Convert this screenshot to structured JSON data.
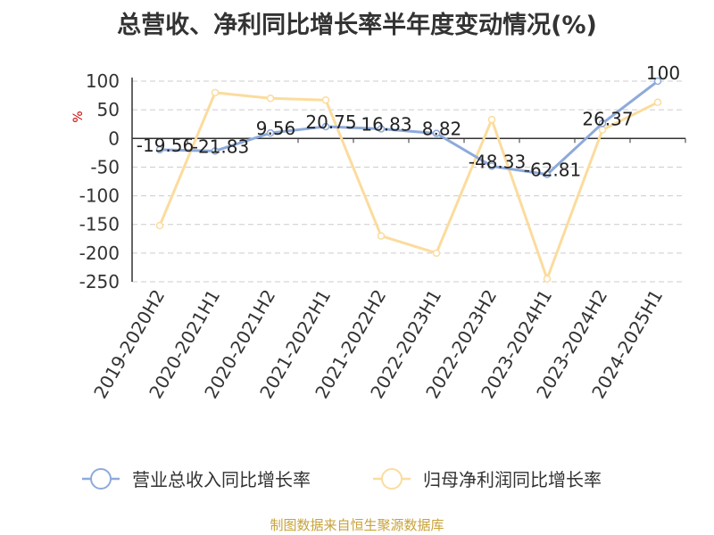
{
  "chart_data": {
    "type": "line",
    "title": "总营收、净利同比增长率半年度变动情况(%)",
    "ylabel": "%",
    "ylim": [
      -250,
      100
    ],
    "yticks": [
      100,
      50,
      0,
      -50,
      -100,
      -150,
      -200,
      -250
    ],
    "grid": true,
    "legend_position": "bottom",
    "categories": [
      "2019-2020H2",
      "2020-2021H1",
      "2020-2021H2",
      "2021-2022H1",
      "2021-2022H2",
      "2022-2023H1",
      "2022-2023H2",
      "2023-2024H1",
      "2023-2024H2",
      "2024-2025H1"
    ],
    "series": [
      {
        "name": "营业总收入同比增长率",
        "color": "#8eaadb",
        "values": [
          -19.56,
          -21.83,
          9.56,
          20.75,
          16.83,
          8.82,
          -48.33,
          -62.81,
          26.37,
          100
        ],
        "labels": [
          "-19.56",
          "-21.83",
          "9.56",
          "20.75",
          "16.83",
          "8.82",
          "-48.33",
          "-62.81",
          "26.37",
          "100"
        ]
      },
      {
        "name": "归母净利润同比增长率",
        "color": "#fbdc9e",
        "values": [
          -152,
          80,
          70,
          67,
          -170,
          -200,
          33,
          -245,
          15,
          63
        ]
      }
    ]
  },
  "footer": "制图数据来自恒生聚源数据库"
}
